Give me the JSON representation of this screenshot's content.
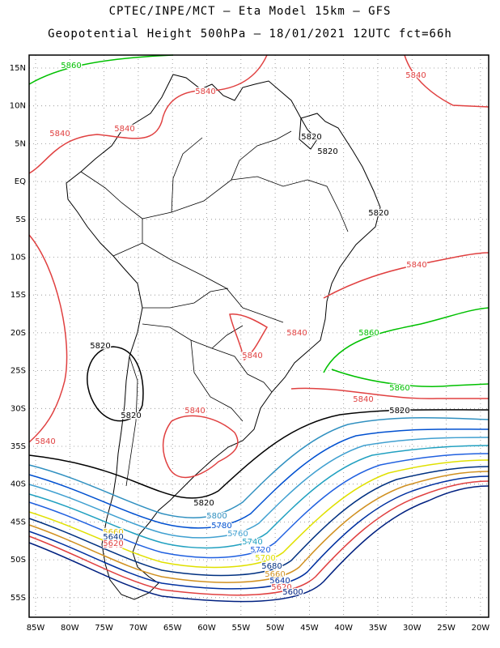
{
  "header": {
    "line1": "CPTEC/INPE/MCT –  Eta Model 15km – GFS",
    "line2": "Geopotential Height 500hPa – 18/01/2021 12UTC fct=66h"
  },
  "lat_ticks": [
    "15N",
    "10N",
    "5N",
    "EQ",
    "5S",
    "10S",
    "15S",
    "20S",
    "25S",
    "30S",
    "35S",
    "40S",
    "45S",
    "50S",
    "55S"
  ],
  "lon_ticks": [
    "85W",
    "80W",
    "75W",
    "70W",
    "65W",
    "60W",
    "55W",
    "50W",
    "45W",
    "40W",
    "35W",
    "30W",
    "25W",
    "20W"
  ],
  "contour_labels": [
    {
      "text": "5860",
      "color": "#00c000"
    },
    {
      "text": "5840",
      "color": "#e04040"
    },
    {
      "text": "5840",
      "color": "#e04040"
    },
    {
      "text": "5840",
      "color": "#e04040"
    },
    {
      "text": "5840",
      "color": "#e04040"
    },
    {
      "text": "5840",
      "color": "#e04040"
    },
    {
      "text": "5840",
      "color": "#e04040"
    },
    {
      "text": "5840",
      "color": "#e04040"
    },
    {
      "text": "5840",
      "color": "#e04040"
    },
    {
      "text": "5840",
      "color": "#e04040"
    },
    {
      "text": "5840",
      "color": "#e04040"
    },
    {
      "text": "5820",
      "color": "#000000"
    },
    {
      "text": "5820",
      "color": "#000000"
    },
    {
      "text": "5820",
      "color": "#000000"
    },
    {
      "text": "5820",
      "color": "#000000"
    },
    {
      "text": "5820",
      "color": "#000000"
    },
    {
      "text": "5820",
      "color": "#000000"
    },
    {
      "text": "5820",
      "color": "#000000"
    },
    {
      "text": "5860",
      "color": "#00c000"
    },
    {
      "text": "5860",
      "color": "#00c000"
    },
    {
      "text": "5840",
      "color": "#e04040"
    },
    {
      "text": "5800",
      "color": "#3090c0"
    },
    {
      "text": "5780",
      "color": "#0050d0"
    },
    {
      "text": "5760",
      "color": "#40a0d0"
    },
    {
      "text": "5740",
      "color": "#20a0c0"
    },
    {
      "text": "5720",
      "color": "#2060e0"
    },
    {
      "text": "5700",
      "color": "#e0e000"
    },
    {
      "text": "5680",
      "color": "#003080"
    },
    {
      "text": "5660",
      "color": "#d09020"
    },
    {
      "text": "5640",
      "color": "#0030a0"
    },
    {
      "text": "5620",
      "color": "#e04040"
    },
    {
      "text": "5600",
      "color": "#002080"
    },
    {
      "text": "5660",
      "color": "#e0c000"
    },
    {
      "text": "5640",
      "color": "#003080"
    },
    {
      "text": "5620",
      "color": "#e04040"
    }
  ],
  "colors": {
    "frame": "#000000",
    "grid": "#888888",
    "land": "#000000"
  }
}
